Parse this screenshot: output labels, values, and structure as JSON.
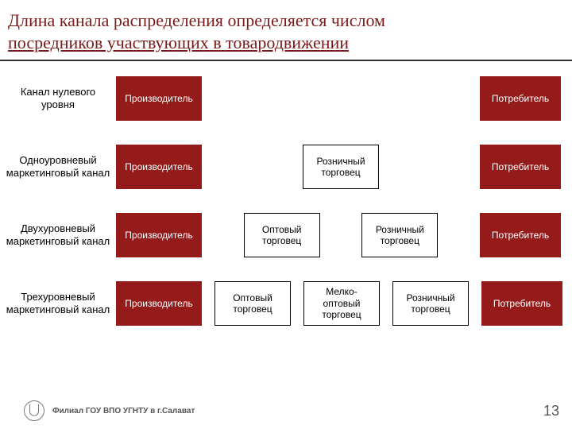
{
  "title_line1": "Длина канала распределения определяется числом",
  "title_line2": "посредников участвующих в товародвижении",
  "colors": {
    "producer_consumer_bg": "#951a1a",
    "producer_consumer_text": "#ffffff",
    "mid_bg": "#ffffff",
    "mid_text": "#000000",
    "title_color": "#7a1a1a",
    "rule_color": "#333333"
  },
  "box_w": {
    "producer": 108,
    "mid": 96,
    "consumer": 102
  },
  "rows": [
    {
      "label": "Канал нулевого уровня",
      "boxes": [
        {
          "type": "producer",
          "text": "Производитель"
        },
        {
          "type": "spacer"
        },
        {
          "type": "consumer",
          "text": "Потребитель"
        }
      ]
    },
    {
      "label": "Одноуровневый маркетинговый канал",
      "boxes": [
        {
          "type": "producer",
          "text": "Производитель"
        },
        {
          "type": "spacer"
        },
        {
          "type": "mid",
          "text": "Розничный торговец"
        },
        {
          "type": "spacer"
        },
        {
          "type": "consumer",
          "text": "Потребитель"
        }
      ]
    },
    {
      "label": "Двухуровневый маркетинговый канал",
      "boxes": [
        {
          "type": "producer",
          "text": "Производитель"
        },
        {
          "type": "spacer"
        },
        {
          "type": "mid",
          "text": "Оптовый торговец"
        },
        {
          "type": "spacer"
        },
        {
          "type": "mid",
          "text": "Розничный торговец"
        },
        {
          "type": "spacer"
        },
        {
          "type": "consumer",
          "text": "Потребитель"
        }
      ]
    },
    {
      "label": "Трехуровневый маркетинговый канал",
      "boxes": [
        {
          "type": "producer",
          "text": "Производитель"
        },
        {
          "type": "spacer"
        },
        {
          "type": "mid",
          "text": "Оптовый торговец"
        },
        {
          "type": "spacer"
        },
        {
          "type": "mid",
          "text": "Мелко-оптовый торговец"
        },
        {
          "type": "spacer"
        },
        {
          "type": "mid",
          "text": "Розничный торговец"
        },
        {
          "type": "spacer"
        },
        {
          "type": "consumer",
          "text": "Потребитель"
        }
      ]
    }
  ],
  "footer_text": "Филиал ГОУ ВПО УГНТУ в г.Салават",
  "page_number": "13"
}
